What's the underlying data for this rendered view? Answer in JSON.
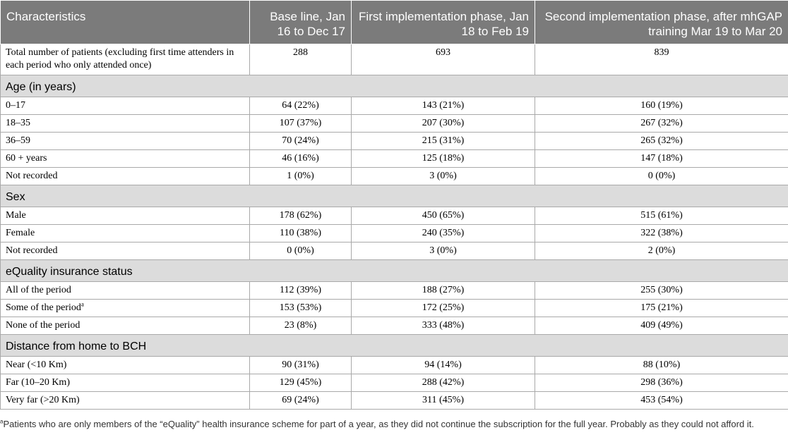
{
  "headers": [
    "Characteristics",
    "Base line, Jan 16 to Dec 17",
    "First implementation phase, Jan 18 to Feb 19",
    "Second implementation phase, after mhGAP training Mar 19 to Mar 20"
  ],
  "total_row": {
    "label": "Total number of patients (excluding first time attenders in each period who only attended once)",
    "values": [
      "288",
      "693",
      "839"
    ]
  },
  "sections": [
    {
      "title": "Age (in years)",
      "rows": [
        {
          "label": "0–17",
          "values": [
            "64 (22%)",
            "143 (21%)",
            "160 (19%)"
          ]
        },
        {
          "label": "18–35",
          "values": [
            "107 (37%)",
            "207 (30%)",
            "267 (32%)"
          ]
        },
        {
          "label": "36–59",
          "values": [
            "70 (24%)",
            "215 (31%)",
            "265 (32%)"
          ]
        },
        {
          "label": "60 + years",
          "values": [
            "46 (16%)",
            "125 (18%)",
            "147 (18%)"
          ]
        },
        {
          "label": "Not recorded",
          "values": [
            "1 (0%)",
            "3 (0%)",
            "0 (0%)"
          ]
        }
      ]
    },
    {
      "title": "Sex",
      "rows": [
        {
          "label": "Male",
          "values": [
            "178 (62%)",
            "450 (65%)",
            "515 (61%)"
          ]
        },
        {
          "label": "Female",
          "values": [
            "110 (38%)",
            "240 (35%)",
            "322 (38%)"
          ]
        },
        {
          "label": "Not recorded",
          "values": [
            "0 (0%)",
            "3 (0%)",
            "2 (0%)"
          ]
        }
      ]
    },
    {
      "title": "eQuality insurance status",
      "rows": [
        {
          "label": "All of the period",
          "values": [
            "112 (39%)",
            "188 (27%)",
            "255 (30%)"
          ]
        },
        {
          "label": "Some of the period",
          "sup": "a",
          "values": [
            "153 (53%)",
            "172 (25%)",
            "175 (21%)"
          ]
        },
        {
          "label": "None of the period",
          "values": [
            "23 (8%)",
            "333 (48%)",
            "409 (49%)"
          ]
        }
      ]
    },
    {
      "title": "Distance from home to BCH",
      "rows": [
        {
          "label": "Near (<10 Km)",
          "values": [
            "90 (31%)",
            "94 (14%)",
            "88 (10%)"
          ]
        },
        {
          "label": "Far (10–20 Km)",
          "values": [
            "129 (45%)",
            "288 (42%)",
            "298 (36%)"
          ]
        },
        {
          "label": "Very far (>20 Km)",
          "values": [
            "69 (24%)",
            "311 (45%)",
            "453 (54%)"
          ]
        }
      ]
    }
  ],
  "footnote": {
    "marker": "a",
    "text": "Patients who are only members of the “eQuality” health insurance scheme for part of a year, as they did not continue the subscription for the full year. Probably as they could not afford it."
  }
}
